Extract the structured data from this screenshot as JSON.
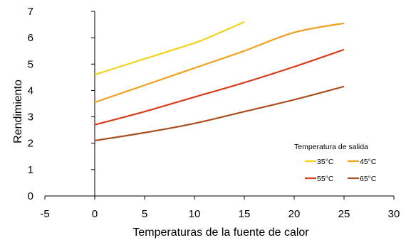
{
  "chart_data": {
    "type": "line",
    "title": "",
    "xlabel": "Temperaturas de la fuente de calor",
    "ylabel": "Rendimiento",
    "xlim": [
      -5,
      30
    ],
    "ylim": [
      0,
      7
    ],
    "xticks": [
      -5,
      0,
      5,
      10,
      15,
      20,
      25,
      30
    ],
    "yticks": [
      0,
      1,
      2,
      3,
      4,
      5,
      6,
      7
    ],
    "grid": false,
    "legend_title": "Temperatura de salida",
    "legend_position": "bottom-right",
    "series": [
      {
        "name": "35°C",
        "color": "#f3d21a",
        "x": [
          0,
          5,
          10,
          12,
          15
        ],
        "y": [
          4.6,
          5.2,
          5.8,
          6.1,
          6.6
        ]
      },
      {
        "name": "45°C",
        "color": "#f0a01e",
        "x": [
          0,
          5,
          10,
          15,
          20,
          25
        ],
        "y": [
          3.55,
          4.2,
          4.85,
          5.5,
          6.2,
          6.55
        ]
      },
      {
        "name": "55°C",
        "color": "#d83c1c",
        "x": [
          0,
          5,
          10,
          15,
          20,
          25
        ],
        "y": [
          2.7,
          3.2,
          3.75,
          4.3,
          4.9,
          5.55
        ]
      },
      {
        "name": "65°C",
        "color": "#a8501e",
        "x": [
          0,
          5,
          10,
          15,
          20,
          25
        ],
        "y": [
          2.1,
          2.4,
          2.75,
          3.2,
          3.65,
          4.15
        ]
      }
    ]
  }
}
